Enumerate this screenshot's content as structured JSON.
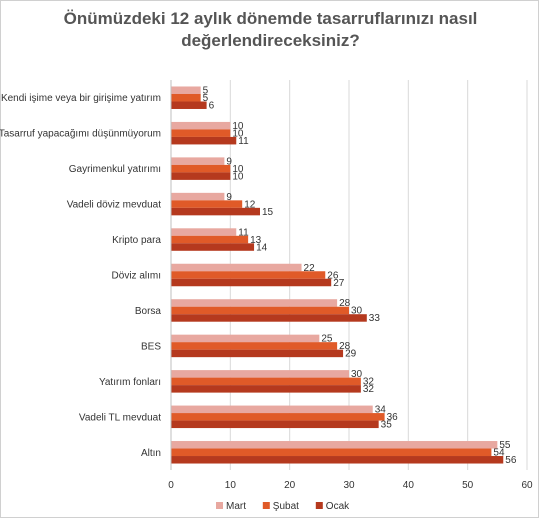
{
  "chart_data": {
    "type": "bar",
    "orientation": "horizontal",
    "title_lines": [
      "Önümüzdeki 12 aylık dönemde tasarruflarınızı nasıl",
      "değerlendireceksiniz?"
    ],
    "categories": [
      "Kendi işime veya bir girişime yatırım",
      "Tasarruf yapacağımı düşünmüyorum",
      "Gayrimenkul yatırımı",
      "Vadeli döviz mevduat",
      "Kripto para",
      "Döviz alımı",
      "Borsa",
      "BES",
      "Yatırım fonları",
      "Vadeli TL mevduat",
      "Altın"
    ],
    "series": [
      {
        "name": "Mart",
        "color": "#e8a8a0",
        "values": [
          5,
          10,
          9,
          9,
          11,
          22,
          28,
          25,
          30,
          34,
          55
        ]
      },
      {
        "name": "Şubat",
        "color": "#e05a28",
        "values": [
          5,
          10,
          10,
          12,
          13,
          26,
          30,
          28,
          32,
          36,
          54
        ]
      },
      {
        "name": "Ocak",
        "color": "#b5391e",
        "values": [
          6,
          11,
          10,
          15,
          14,
          27,
          33,
          29,
          32,
          35,
          56
        ]
      }
    ],
    "xlim": [
      0,
      60
    ],
    "xticks": [
      0,
      10,
      20,
      30,
      40,
      50,
      60
    ],
    "grid": true,
    "legend": "bottom"
  }
}
